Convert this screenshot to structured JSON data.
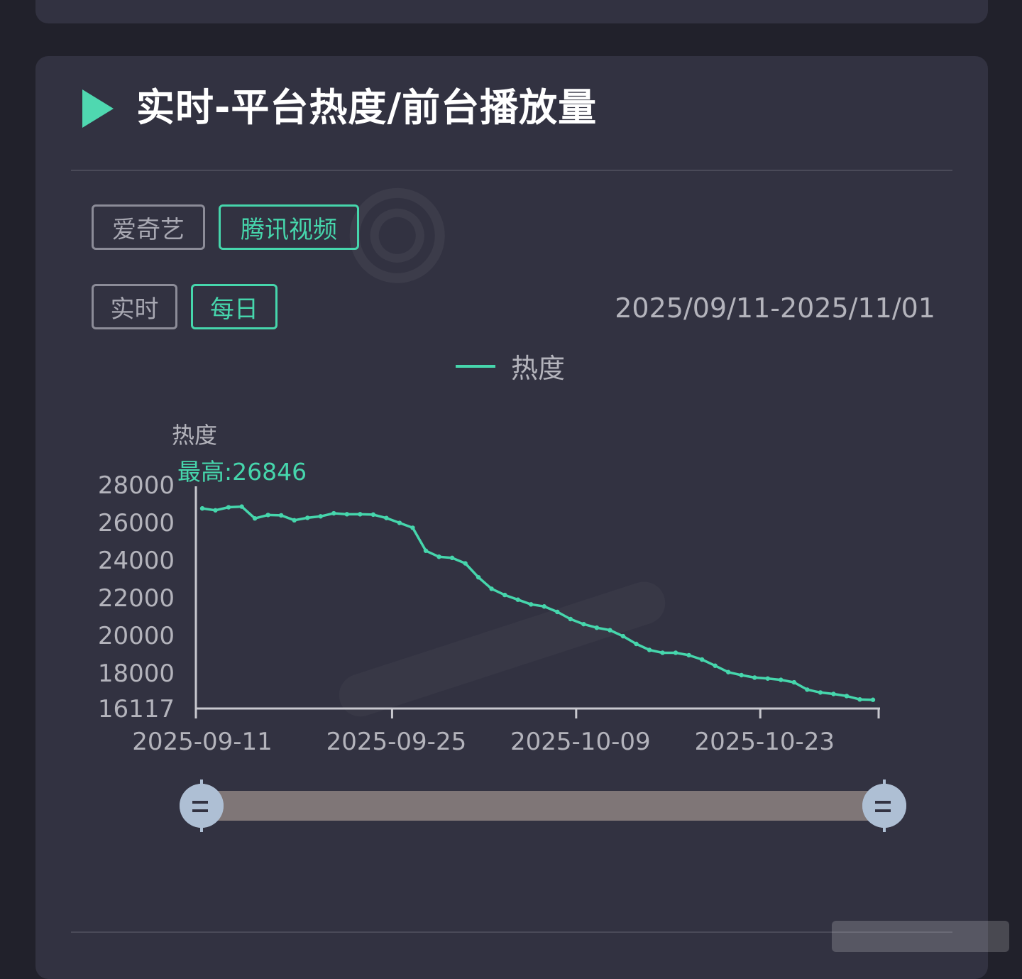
{
  "section": {
    "title": "实时-平台热度/前台播放量"
  },
  "platform_tabs": [
    {
      "label": "爱奇艺",
      "active": false
    },
    {
      "label": "腾讯视频",
      "active": true
    }
  ],
  "mode_tabs": [
    {
      "label": "实时",
      "active": false
    },
    {
      "label": "每日",
      "active": true
    }
  ],
  "date_range": "2025/09/11-2025/11/01",
  "colors": {
    "accent": "#46d6ac",
    "background": "#21212b",
    "card": "#323241",
    "slider_track": "#7f7677",
    "slider_handle": "#aebfd4"
  },
  "icons": {
    "section_icon": "play-triangle-icon"
  },
  "chart_data": {
    "type": "line",
    "title": "",
    "xlabel": "",
    "ylabel": "热度",
    "legend": {
      "label": "热度",
      "position": "top-center"
    },
    "max_label": "最高:26846",
    "ylim": [
      16117,
      28000
    ],
    "y_ticks": [
      "28000",
      "26000",
      "24000",
      "22000",
      "20000",
      "18000",
      "16117"
    ],
    "y_tick_values": [
      28000,
      26000,
      24000,
      22000,
      20000,
      18000,
      16117
    ],
    "x_ticks": [
      "2025-09-11",
      "2025-09-25",
      "2025-10-09",
      "2025-10-23"
    ],
    "grid": false,
    "series": [
      {
        "name": "热度",
        "x": [
          "2025-09-11",
          "2025-09-12",
          "2025-09-13",
          "2025-09-14",
          "2025-09-15",
          "2025-09-16",
          "2025-09-17",
          "2025-09-18",
          "2025-09-19",
          "2025-09-20",
          "2025-09-21",
          "2025-09-22",
          "2025-09-23",
          "2025-09-24",
          "2025-09-25",
          "2025-09-26",
          "2025-09-27",
          "2025-09-28",
          "2025-09-29",
          "2025-09-30",
          "2025-10-01",
          "2025-10-02",
          "2025-10-03",
          "2025-10-04",
          "2025-10-05",
          "2025-10-06",
          "2025-10-07",
          "2025-10-08",
          "2025-10-09",
          "2025-10-10",
          "2025-10-11",
          "2025-10-12",
          "2025-10-13",
          "2025-10-14",
          "2025-10-15",
          "2025-10-16",
          "2025-10-17",
          "2025-10-18",
          "2025-10-19",
          "2025-10-20",
          "2025-10-21",
          "2025-10-22",
          "2025-10-23",
          "2025-10-24",
          "2025-10-25",
          "2025-10-26",
          "2025-10-27",
          "2025-10-28",
          "2025-10-29",
          "2025-10-30",
          "2025-10-31",
          "2025-11-01"
        ],
        "values": [
          26750,
          26650,
          26810,
          26846,
          26220,
          26400,
          26380,
          26120,
          26250,
          26330,
          26490,
          26440,
          26440,
          26420,
          26240,
          25980,
          25720,
          24500,
          24180,
          24120,
          23830,
          23090,
          22480,
          22150,
          21900,
          21650,
          21540,
          21250,
          20870,
          20600,
          20410,
          20280,
          19960,
          19550,
          19230,
          19080,
          19080,
          18950,
          18720,
          18390,
          18050,
          17890,
          17760,
          17710,
          17640,
          17510,
          17120,
          16970,
          16890,
          16780,
          16600,
          16580
        ]
      }
    ]
  }
}
